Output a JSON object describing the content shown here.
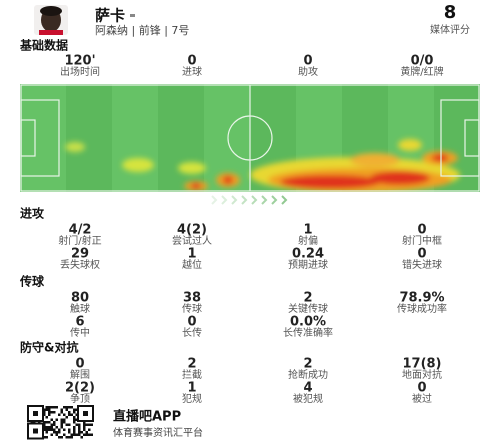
{
  "header": {
    "name": "萨卡",
    "subtitle": "阿森纳 | 前锋 | 7号",
    "rating": "8",
    "rating_label": "媒体评分"
  },
  "basic": {
    "title": "基础数据",
    "stats": [
      {
        "value": "120'",
        "label": "出场时间"
      },
      {
        "value": "0",
        "label": "进球"
      },
      {
        "value": "0",
        "label": "助攻"
      },
      {
        "value": "0/0",
        "label": "黄牌/红牌"
      }
    ]
  },
  "sections": [
    {
      "title": "进攻",
      "stats": [
        {
          "value": "4/2",
          "label": "射门/射正"
        },
        {
          "value": "4(2)",
          "label": "尝试过人"
        },
        {
          "value": "1",
          "label": "射偏"
        },
        {
          "value": "0",
          "label": "射门中框"
        },
        {
          "value": "29",
          "label": "丢失球权"
        },
        {
          "value": "1",
          "label": "越位"
        },
        {
          "value": "0.24",
          "label": "预期进球"
        },
        {
          "value": "0",
          "label": "错失进球"
        }
      ]
    },
    {
      "title": "传球",
      "stats": [
        {
          "value": "80",
          "label": "触球"
        },
        {
          "value": "38",
          "label": "传球"
        },
        {
          "value": "2",
          "label": "关键传球"
        },
        {
          "value": "78.9%",
          "label": "传球成功率"
        },
        {
          "value": "6",
          "label": "传中"
        },
        {
          "value": "0",
          "label": "长传"
        },
        {
          "value": "0.0%",
          "label": "长传准确率"
        }
      ]
    },
    {
      "title": "防守&对抗",
      "stats": [
        {
          "value": "0",
          "label": "解围"
        },
        {
          "value": "2",
          "label": "拦截"
        },
        {
          "value": "2",
          "label": "抢断成功"
        },
        {
          "value": "17(8)",
          "label": "地面对抗"
        },
        {
          "value": "2(2)",
          "label": "争顶"
        },
        {
          "value": "1",
          "label": "犯规"
        },
        {
          "value": "4",
          "label": "被犯规"
        },
        {
          "value": "0",
          "label": "被过"
        }
      ]
    }
  ],
  "footer": {
    "app": "直播吧APP",
    "tagline": "体育赛事资讯汇平台"
  }
}
